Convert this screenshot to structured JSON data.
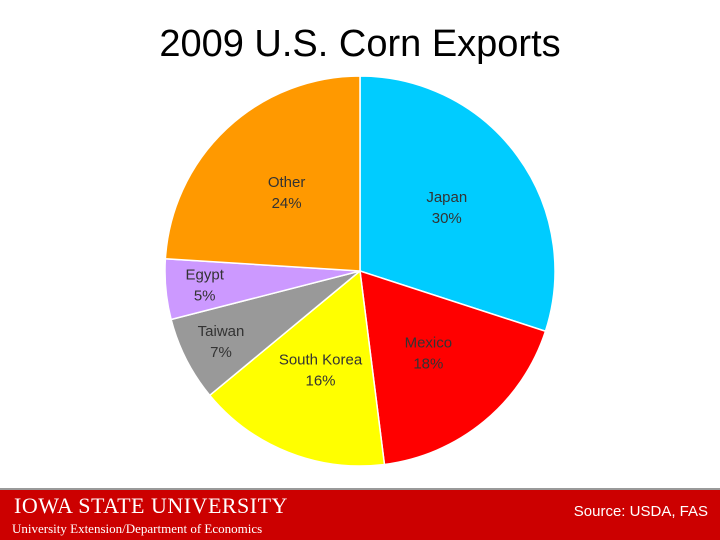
{
  "chart_data": {
    "type": "pie",
    "title": "2009 U.S. Corn Exports",
    "categories": [
      "Japan",
      "Mexico",
      "South Korea",
      "Taiwan",
      "Egypt",
      "Other"
    ],
    "values": [
      30,
      18,
      16,
      7,
      5,
      24
    ],
    "value_labels": [
      "30%",
      "18%",
      "16%",
      "7%",
      "5%",
      "24%"
    ],
    "colors": [
      "#00ccff",
      "#ff0000",
      "#ffff00",
      "#999999",
      "#cc99ff",
      "#ff9900"
    ]
  },
  "footer": {
    "logo": "Iowa State University",
    "department": "University Extension/Department of Economics",
    "source": "Source: USDA, FAS"
  }
}
